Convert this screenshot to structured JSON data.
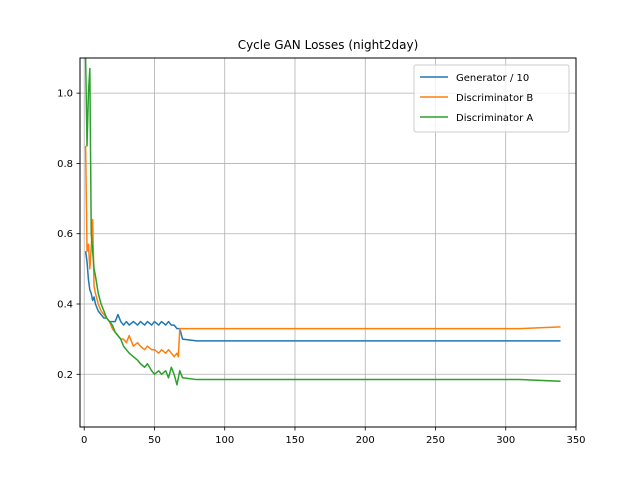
{
  "chart_data": {
    "type": "line",
    "title": "Cycle GAN Losses (night2day)",
    "xlabel": "",
    "ylabel": "",
    "xlim": [
      -3,
      350
    ],
    "ylim": [
      0.05,
      1.1
    ],
    "xticks": [
      0,
      50,
      100,
      150,
      200,
      250,
      300,
      350
    ],
    "yticks": [
      0.2,
      0.4,
      0.6,
      0.8,
      1.0
    ],
    "xtick_labels": [
      "0",
      "50",
      "100",
      "150",
      "200",
      "250",
      "300",
      "350"
    ],
    "ytick_labels": [
      "0.2",
      "0.4",
      "0.6",
      "0.8",
      "1.0"
    ],
    "grid": true,
    "legend_position": "top-right",
    "series": [
      {
        "name": "Generator / 10",
        "color": "#1f77b4",
        "x": [
          1,
          2,
          3,
          4,
          5,
          6,
          7,
          8,
          10,
          12,
          14,
          16,
          18,
          20,
          22,
          24,
          26,
          28,
          30,
          32,
          35,
          38,
          40,
          43,
          45,
          48,
          50,
          53,
          55,
          58,
          60,
          62,
          64,
          66,
          68,
          70,
          80,
          100,
          120,
          150,
          180,
          200,
          230,
          260,
          290,
          310,
          339
        ],
        "y": [
          0.55,
          0.52,
          0.47,
          0.44,
          0.43,
          0.41,
          0.42,
          0.4,
          0.38,
          0.37,
          0.36,
          0.36,
          0.35,
          0.35,
          0.35,
          0.37,
          0.35,
          0.34,
          0.35,
          0.34,
          0.35,
          0.34,
          0.35,
          0.34,
          0.35,
          0.34,
          0.35,
          0.34,
          0.35,
          0.34,
          0.35,
          0.34,
          0.34,
          0.33,
          0.33,
          0.3,
          0.295,
          0.295,
          0.295,
          0.295,
          0.295,
          0.295,
          0.295,
          0.295,
          0.295,
          0.295,
          0.295
        ]
      },
      {
        "name": "Discriminator B",
        "color": "#ff7f0e",
        "x": [
          1,
          2,
          3,
          4,
          5,
          6,
          7,
          8,
          10,
          12,
          14,
          16,
          18,
          20,
          22,
          24,
          26,
          28,
          30,
          32,
          35,
          38,
          40,
          43,
          45,
          48,
          50,
          53,
          55,
          58,
          60,
          62,
          64,
          66,
          67,
          68,
          70,
          80,
          100,
          120,
          150,
          180,
          200,
          230,
          260,
          290,
          310,
          339
        ],
        "y": [
          0.85,
          0.55,
          0.57,
          0.5,
          0.56,
          0.64,
          0.45,
          0.43,
          0.4,
          0.38,
          0.37,
          0.36,
          0.35,
          0.33,
          0.32,
          0.31,
          0.3,
          0.3,
          0.29,
          0.31,
          0.28,
          0.29,
          0.28,
          0.27,
          0.28,
          0.27,
          0.27,
          0.26,
          0.27,
          0.26,
          0.27,
          0.26,
          0.25,
          0.26,
          0.25,
          0.33,
          0.33,
          0.33,
          0.33,
          0.33,
          0.33,
          0.33,
          0.33,
          0.33,
          0.33,
          0.33,
          0.33,
          0.335
        ]
      },
      {
        "name": "Discriminator A",
        "color": "#2ca02c",
        "x": [
          1,
          2,
          3,
          4,
          5,
          6,
          7,
          8,
          10,
          12,
          14,
          16,
          18,
          20,
          22,
          24,
          26,
          28,
          30,
          32,
          35,
          38,
          40,
          43,
          45,
          48,
          50,
          53,
          55,
          58,
          60,
          62,
          64,
          66,
          68,
          70,
          80,
          100,
          120,
          150,
          180,
          200,
          230,
          260,
          290,
          310,
          339
        ],
        "y": [
          1.1,
          0.85,
          1.0,
          1.07,
          0.6,
          0.55,
          0.5,
          0.48,
          0.43,
          0.4,
          0.38,
          0.36,
          0.35,
          0.34,
          0.32,
          0.31,
          0.3,
          0.28,
          0.27,
          0.26,
          0.25,
          0.24,
          0.23,
          0.22,
          0.23,
          0.21,
          0.2,
          0.21,
          0.2,
          0.21,
          0.19,
          0.22,
          0.2,
          0.17,
          0.21,
          0.19,
          0.185,
          0.185,
          0.185,
          0.185,
          0.185,
          0.185,
          0.185,
          0.185,
          0.185,
          0.185,
          0.18
        ]
      }
    ]
  }
}
